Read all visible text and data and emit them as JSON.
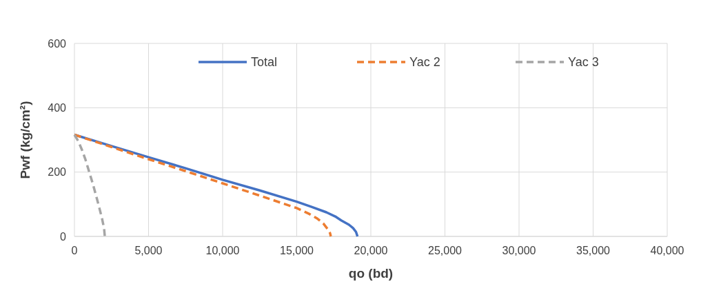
{
  "chart_data": {
    "type": "line",
    "xlabel": "qo (bd)",
    "ylabel": "Pwf (kg/cm²)",
    "xlim": [
      0,
      40000
    ],
    "ylim": [
      0,
      600
    ],
    "xticks": [
      {
        "value": 0,
        "label": "0"
      },
      {
        "value": 5000,
        "label": "5,000"
      },
      {
        "value": 10000,
        "label": "10,000"
      },
      {
        "value": 15000,
        "label": "15,000"
      },
      {
        "value": 20000,
        "label": "20,000"
      },
      {
        "value": 25000,
        "label": "25,000"
      },
      {
        "value": 30000,
        "label": "30,000"
      },
      {
        "value": 35000,
        "label": "35,000"
      },
      {
        "value": 40000,
        "label": "40,000"
      }
    ],
    "yticks": [
      0,
      200,
      400,
      600
    ],
    "grid": true,
    "legend": "top",
    "marker": "none",
    "series": [
      {
        "name": "Total",
        "color": "#4472c4",
        "line_style": "solid",
        "x": [
          0,
          2500,
          5000,
          7500,
          10000,
          12500,
          15000,
          16000,
          17000,
          17600,
          18000,
          18500,
          18800,
          19000,
          19100
        ],
        "values": [
          316,
          281,
          246,
          212,
          176,
          143,
          108,
          92,
          75,
          62,
          50,
          37,
          26,
          14,
          0
        ]
      },
      {
        "name": "Yac 2",
        "color": "#ed7d31",
        "line_style": "dashed",
        "x": [
          0,
          2500,
          5000,
          7500,
          10000,
          12500,
          15000,
          15800,
          16400,
          16800,
          17100,
          17250,
          17300
        ],
        "values": [
          316,
          278,
          240,
          203,
          165,
          127,
          88,
          71,
          55,
          40,
          22,
          10,
          0
        ]
      },
      {
        "name": "Yac 3",
        "color": "#a5a5a5",
        "line_style": "dashed",
        "x": [
          0,
          250,
          500,
          750,
          1000,
          1250,
          1500,
          1700,
          1850,
          2000,
          2050
        ],
        "values": [
          316,
          297,
          270,
          238,
          200,
          162,
          120,
          85,
          58,
          25,
          0
        ]
      }
    ]
  }
}
